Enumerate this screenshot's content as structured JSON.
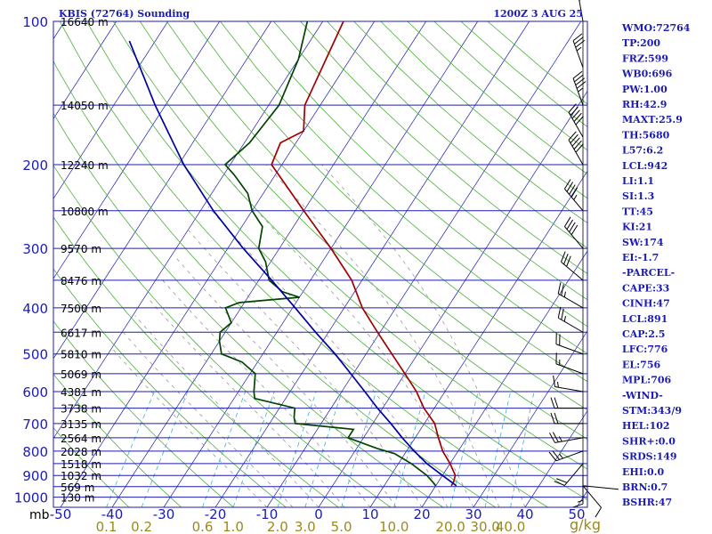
{
  "chart_data": {
    "type": "line",
    "title": "KBIS (72764) Sounding",
    "time": "1200Z  3 AUG 25",
    "pressure_unit": "mb",
    "mixing_ratio_unit": "g/kg",
    "pressure_ticks": [
      "100",
      "200",
      "300",
      "400",
      "500",
      "600",
      "700",
      "800",
      "900",
      "1000"
    ],
    "temperature_ticks": [
      "-50",
      "-40",
      "-30",
      "-20",
      "-10",
      "0",
      "10",
      "20",
      "30",
      "40",
      "50"
    ],
    "mixing_ratio_ticks": [
      "0.1",
      "0.2",
      "0.6",
      "1.0",
      "2.0",
      "3.0",
      "5.0",
      "10.0",
      "20.0",
      "30.0",
      "40.0"
    ],
    "height_labels": [
      {
        "p": 100,
        "text": "16640 m"
      },
      {
        "p": 150,
        "text": "14050 m"
      },
      {
        "p": 200,
        "text": "12240 m"
      },
      {
        "p": 250,
        "text": "10800 m"
      },
      {
        "p": 300,
        "text": "9570 m"
      },
      {
        "p": 350,
        "text": "8476 m"
      },
      {
        "p": 400,
        "text": "7500 m"
      },
      {
        "p": 450,
        "text": "6617 m"
      },
      {
        "p": 500,
        "text": "5810 m"
      },
      {
        "p": 550,
        "text": "5069 m"
      },
      {
        "p": 600,
        "text": "4381 m"
      },
      {
        "p": 650,
        "text": "3738 m"
      },
      {
        "p": 700,
        "text": "3135 m"
      },
      {
        "p": 750,
        "text": "2564 m"
      },
      {
        "p": 800,
        "text": "2028 m"
      },
      {
        "p": 850,
        "text": "1518 m"
      },
      {
        "p": 900,
        "text": "1032 m"
      },
      {
        "p": 950,
        "text": "569 m"
      },
      {
        "p": 1000,
        "text": "130 m"
      }
    ],
    "series": [
      {
        "color": "#a00000",
        "points": [
          {
            "p": 946,
            "t": 23.0
          },
          {
            "p": 930,
            "t": 23.0
          },
          {
            "p": 900,
            "t": 22.5
          },
          {
            "p": 850,
            "t": 20.0
          },
          {
            "p": 800,
            "t": 17.0
          },
          {
            "p": 750,
            "t": 14.5
          },
          {
            "p": 700,
            "t": 12.0
          },
          {
            "p": 650,
            "t": 8.0
          },
          {
            "p": 600,
            "t": 4.5
          },
          {
            "p": 550,
            "t": 0.0
          },
          {
            "p": 500,
            "t": -5.0
          },
          {
            "p": 450,
            "t": -10.5
          },
          {
            "p": 400,
            "t": -16.5
          },
          {
            "p": 350,
            "t": -22.0
          },
          {
            "p": 300,
            "t": -30.0
          },
          {
            "p": 250,
            "t": -40.0
          },
          {
            "p": 200,
            "t": -52.0
          },
          {
            "p": 180,
            "t": -53.0
          },
          {
            "p": 170,
            "t": -50.0
          },
          {
            "p": 150,
            "t": -53.0
          },
          {
            "p": 100,
            "t": -56.0
          }
        ]
      },
      {
        "color": "#004400",
        "points": [
          {
            "p": 946,
            "t": 20.0
          },
          {
            "p": 930,
            "t": 19.0
          },
          {
            "p": 900,
            "t": 17.0
          },
          {
            "p": 850,
            "t": 12.5
          },
          {
            "p": 810,
            "t": 8.0
          },
          {
            "p": 790,
            "t": 4.0
          },
          {
            "p": 750,
            "t": -3.0
          },
          {
            "p": 720,
            "t": -3.0
          },
          {
            "p": 700,
            "t": -15.0
          },
          {
            "p": 680,
            "t": -16.0
          },
          {
            "p": 650,
            "t": -17.0
          },
          {
            "p": 620,
            "t": -26.0
          },
          {
            "p": 600,
            "t": -27.0
          },
          {
            "p": 550,
            "t": -29.0
          },
          {
            "p": 520,
            "t": -33.0
          },
          {
            "p": 500,
            "t": -38.0
          },
          {
            "p": 470,
            "t": -40.0
          },
          {
            "p": 450,
            "t": -41.0
          },
          {
            "p": 430,
            "t": -40.0
          },
          {
            "p": 400,
            "t": -43.0
          },
          {
            "p": 390,
            "t": -41.0
          },
          {
            "p": 380,
            "t": -30.0
          },
          {
            "p": 370,
            "t": -34.0
          },
          {
            "p": 350,
            "t": -38.0
          },
          {
            "p": 320,
            "t": -41.0
          },
          {
            "p": 300,
            "t": -44.0
          },
          {
            "p": 270,
            "t": -46.0
          },
          {
            "p": 250,
            "t": -50.0
          },
          {
            "p": 230,
            "t": -53.0
          },
          {
            "p": 210,
            "t": -58.0
          },
          {
            "p": 200,
            "t": -61.0
          },
          {
            "p": 180,
            "t": -59.0
          },
          {
            "p": 150,
            "t": -58.0
          },
          {
            "p": 120,
            "t": -60.0
          },
          {
            "p": 100,
            "t": -63.0
          }
        ]
      },
      {
        "color": "#0000a0",
        "points": [
          {
            "p": 946,
            "t": 24.0
          },
          {
            "p": 900,
            "t": 20.0
          },
          {
            "p": 850,
            "t": 15.5
          },
          {
            "p": 800,
            "t": 11.5
          },
          {
            "p": 750,
            "t": 7.5
          },
          {
            "p": 700,
            "t": 3.5
          },
          {
            "p": 650,
            "t": -1.0
          },
          {
            "p": 600,
            "t": -5.5
          },
          {
            "p": 550,
            "t": -10.5
          },
          {
            "p": 500,
            "t": -16.0
          },
          {
            "p": 450,
            "t": -22.5
          },
          {
            "p": 400,
            "t": -29.5
          },
          {
            "p": 350,
            "t": -37.5
          },
          {
            "p": 300,
            "t": -47.0
          },
          {
            "p": 250,
            "t": -57.5
          },
          {
            "p": 200,
            "t": -69.0
          },
          {
            "p": 150,
            "t": -82.0
          },
          {
            "p": 110,
            "t": -95.0
          }
        ]
      }
    ],
    "winds": [
      {
        "p": 946,
        "dir": 140,
        "spd": 10
      },
      {
        "p": 900,
        "dir": 180,
        "spd": 15
      },
      {
        "p": 850,
        "dir": 220,
        "spd": 20
      },
      {
        "p": 800,
        "dir": 250,
        "spd": 25
      },
      {
        "p": 750,
        "dir": 260,
        "spd": 25
      },
      {
        "p": 700,
        "dir": 270,
        "spd": 20
      },
      {
        "p": 650,
        "dir": 270,
        "spd": 20
      },
      {
        "p": 600,
        "dir": 280,
        "spd": 15
      },
      {
        "p": 550,
        "dir": 290,
        "spd": 15
      },
      {
        "p": 500,
        "dir": 290,
        "spd": 20
      },
      {
        "p": 450,
        "dir": 300,
        "spd": 25
      },
      {
        "p": 400,
        "dir": 300,
        "spd": 25
      },
      {
        "p": 350,
        "dir": 310,
        "spd": 30
      },
      {
        "p": 300,
        "dir": 320,
        "spd": 40
      },
      {
        "p": 250,
        "dir": 320,
        "spd": 45
      },
      {
        "p": 200,
        "dir": 330,
        "spd": 50
      },
      {
        "p": 175,
        "dir": 330,
        "spd": 50
      },
      {
        "p": 150,
        "dir": 340,
        "spd": 45
      },
      {
        "p": 125,
        "dir": 340,
        "spd": 35
      },
      {
        "p": 100,
        "dir": 350,
        "spd": 30
      }
    ],
    "indices": [
      "WMO:72764",
      "TP:200",
      "FRZ:599",
      "WB0:696",
      "PW:1.00",
      "RH:42.9",
      "MAXT:25.9",
      "TH:5680",
      "L57:6.2",
      "LCL:942",
      "LI:1.1",
      "SI:1.3",
      "TT:45",
      "KI:21",
      "SW:174",
      "EI:-1.7",
      "-PARCEL-",
      "CAPE:33",
      "CINH:47",
      "LCL:891",
      "CAP:2.5",
      "LFC:776",
      "EL:756",
      "MPL:706",
      "-WIND-",
      "STM:343/9",
      "HEL:102",
      "SHR+:0.0",
      "SRDS:149",
      "EHI:0.0",
      "BRN:0.7",
      "BSHR:47"
    ]
  }
}
